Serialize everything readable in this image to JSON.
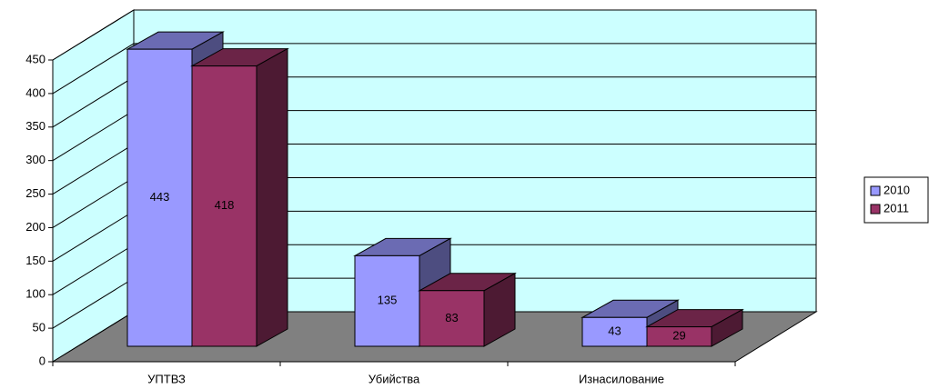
{
  "chart_data": {
    "type": "bar3d",
    "categories": [
      "УПТВЗ",
      "Убийства",
      "Изнасилование"
    ],
    "series": [
      {
        "name": "2010",
        "color": "#9999ff",
        "values": [
          443,
          135,
          43
        ]
      },
      {
        "name": "2011",
        "color": "#993366",
        "values": [
          418,
          83,
          29
        ]
      }
    ],
    "ylim": [
      0,
      450
    ],
    "yticks": [
      0,
      50,
      100,
      150,
      200,
      250,
      300,
      350,
      400,
      450
    ],
    "grid": true,
    "legend": "right"
  }
}
